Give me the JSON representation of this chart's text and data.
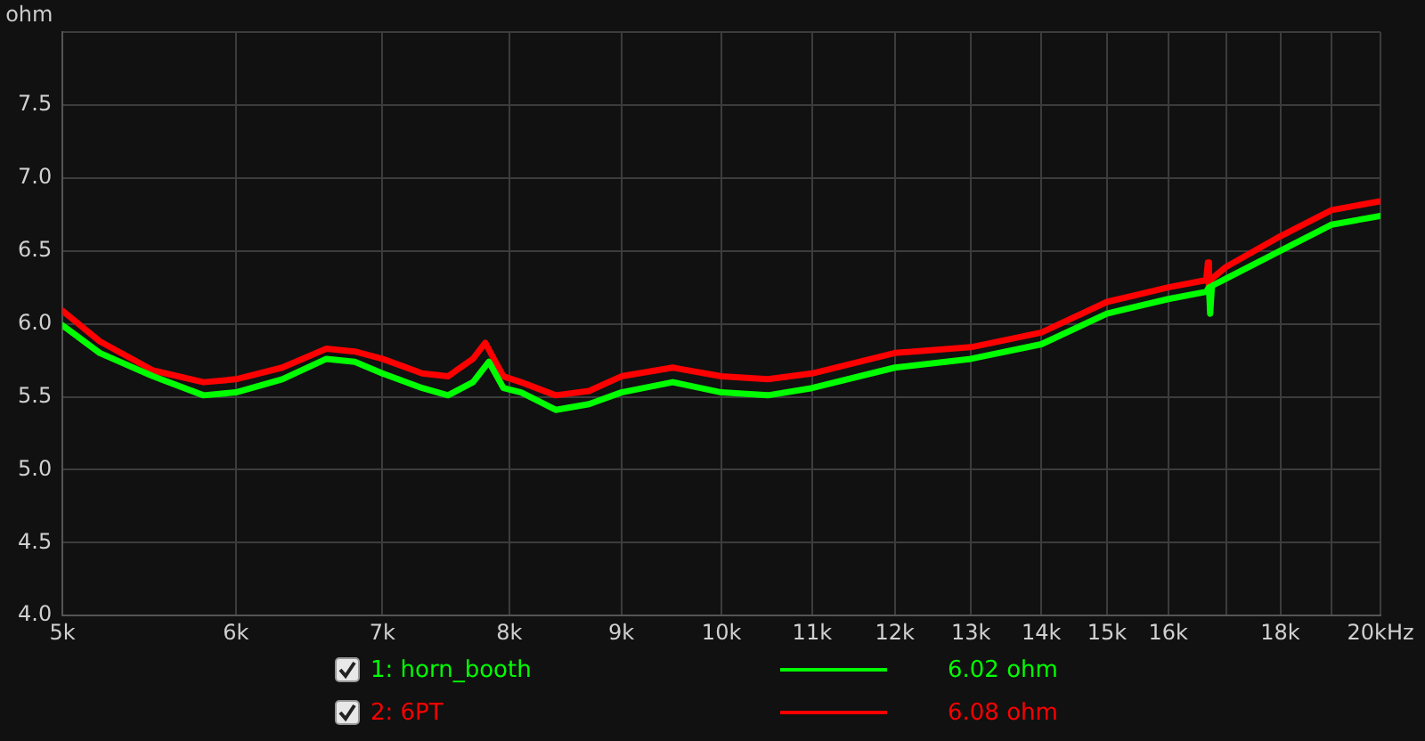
{
  "chart_data": {
    "type": "line",
    "ylabel": "ohm",
    "log": "x",
    "grid": true,
    "legend": "bottom",
    "marker": "none",
    "line_style": "solid",
    "xlim": [
      5,
      20
    ],
    "ylim": [
      4,
      8
    ],
    "xticks": [
      {
        "value": 5,
        "label": "5k"
      },
      {
        "value": 6,
        "label": "6k"
      },
      {
        "value": 7,
        "label": "7k"
      },
      {
        "value": 8,
        "label": "8k"
      },
      {
        "value": 9,
        "label": "9k"
      },
      {
        "value": 10,
        "label": "10k"
      },
      {
        "value": 11,
        "label": "11k"
      },
      {
        "value": 12,
        "label": "12k"
      },
      {
        "value": 13,
        "label": "13k"
      },
      {
        "value": 14,
        "label": "14k"
      },
      {
        "value": 15,
        "label": "15k"
      },
      {
        "value": 16,
        "label": "16k"
      },
      {
        "value": 17,
        "label": null
      },
      {
        "value": 18,
        "label": "18k"
      },
      {
        "value": 19,
        "label": null
      },
      {
        "value": 20,
        "label": "20kHz"
      }
    ],
    "yticks": [
      {
        "value": 4,
        "label": "4.0"
      },
      {
        "value": 4.5,
        "label": "4.5"
      },
      {
        "value": 5,
        "label": "5.0"
      },
      {
        "value": 5.5,
        "label": "5.5"
      },
      {
        "value": 6,
        "label": "6.0"
      },
      {
        "value": 6.5,
        "label": "6.5"
      },
      {
        "value": 7,
        "label": "7.0"
      },
      {
        "value": 7.5,
        "label": "7.5"
      },
      {
        "value": 8,
        "label": null
      }
    ],
    "annotations": [
      "6.02 ohm",
      "6.08 ohm"
    ],
    "series": [
      {
        "name": "1: horn_booth",
        "color": "#00ff00",
        "x": [
          5,
          5.2,
          5.5,
          5.8,
          6,
          6.3,
          6.6,
          6.8,
          7,
          7.3,
          7.5,
          7.7,
          7.83,
          7.95,
          8.1,
          8.2,
          8.4,
          8.7,
          9,
          9.5,
          10,
          10.5,
          11,
          12,
          13,
          14,
          15,
          16,
          16.65,
          16.7,
          16.72,
          16.75,
          17,
          18,
          19,
          20
        ],
        "values": [
          5.99,
          5.8,
          5.64,
          5.51,
          5.53,
          5.62,
          5.76,
          5.74,
          5.66,
          5.56,
          5.51,
          5.6,
          5.74,
          5.56,
          5.53,
          5.49,
          5.41,
          5.45,
          5.53,
          5.6,
          5.53,
          5.51,
          5.56,
          5.7,
          5.76,
          5.86,
          6.07,
          6.17,
          6.22,
          6.25,
          6.07,
          6.26,
          6.31,
          6.5,
          6.68,
          6.74
        ]
      },
      {
        "name": "2: 6PT",
        "color": "#ff0000",
        "x": [
          5,
          5.2,
          5.5,
          5.8,
          6,
          6.3,
          6.6,
          6.8,
          7,
          7.3,
          7.5,
          7.7,
          7.8,
          7.95,
          8.1,
          8.4,
          8.7,
          9,
          9.5,
          10,
          10.5,
          11,
          12,
          13,
          14,
          15,
          16,
          16.65,
          16.68,
          16.7,
          16.72,
          17,
          18,
          19,
          20
        ],
        "values": [
          6.09,
          5.88,
          5.68,
          5.6,
          5.62,
          5.7,
          5.83,
          5.81,
          5.76,
          5.66,
          5.64,
          5.76,
          5.87,
          5.64,
          5.6,
          5.51,
          5.54,
          5.64,
          5.7,
          5.64,
          5.62,
          5.66,
          5.8,
          5.84,
          5.94,
          6.15,
          6.25,
          6.3,
          6.42,
          6.22,
          6.3,
          6.39,
          6.6,
          6.78,
          6.84
        ]
      }
    ]
  }
}
